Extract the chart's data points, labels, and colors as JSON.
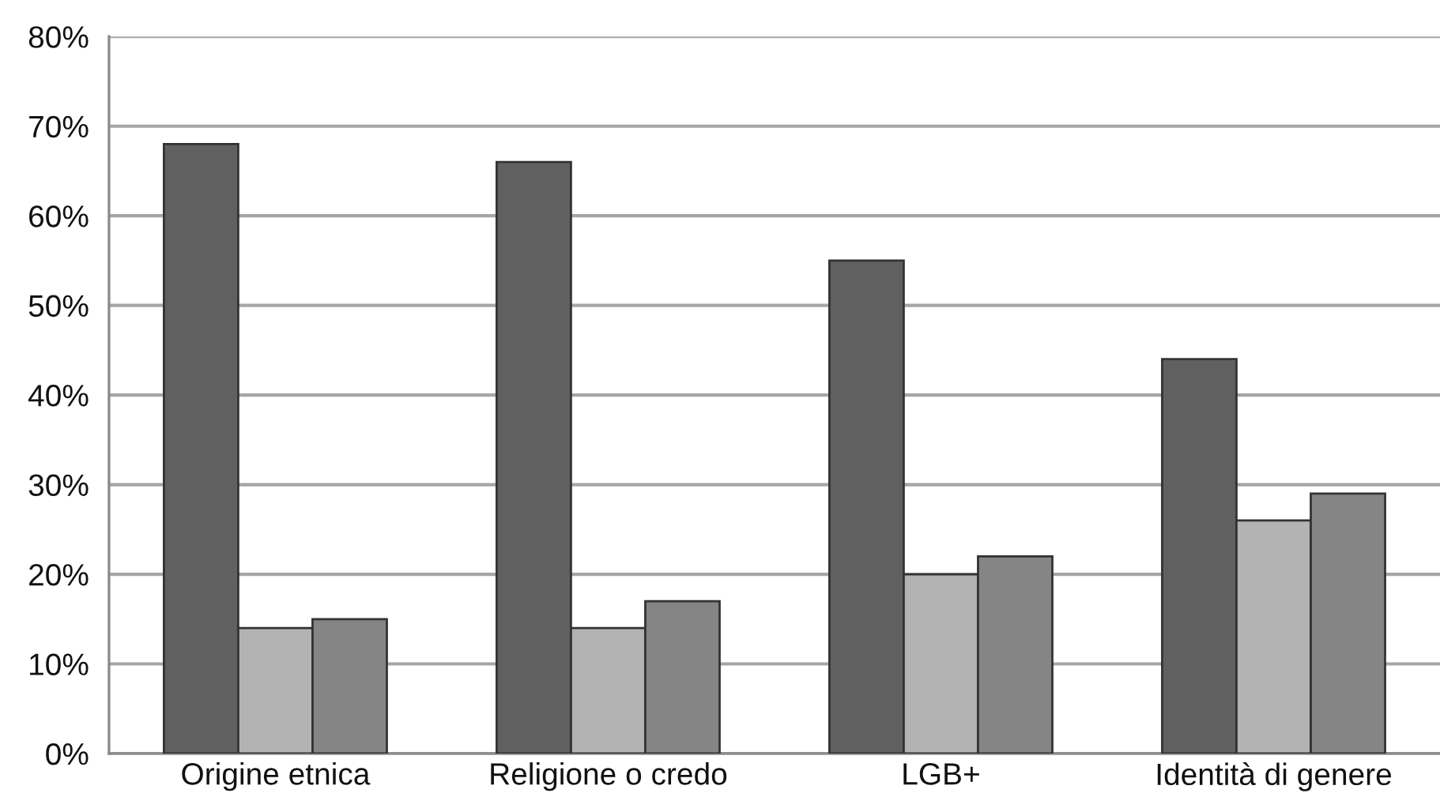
{
  "chart_data": {
    "type": "bar",
    "categories": [
      "Origine etnica",
      "Religione o credo",
      "LGB+",
      "Identità di genere"
    ],
    "series": [
      {
        "color": "#606060",
        "values": [
          68,
          66,
          55,
          44
        ]
      },
      {
        "color": "#b3b3b3",
        "values": [
          14,
          14,
          20,
          26
        ]
      },
      {
        "color": "#858585",
        "values": [
          15,
          17,
          22,
          29
        ]
      }
    ],
    "ylim": [
      0,
      80
    ],
    "yticks": [
      {
        "value": 0,
        "label": "0%"
      },
      {
        "value": 10,
        "label": "10%"
      },
      {
        "value": 20,
        "label": "20%"
      },
      {
        "value": 30,
        "label": "30%"
      },
      {
        "value": 40,
        "label": "40%"
      },
      {
        "value": 50,
        "label": "50%"
      },
      {
        "value": 60,
        "label": "60%"
      },
      {
        "value": 70,
        "label": "70%"
      },
      {
        "value": 80,
        "label": "80%"
      }
    ],
    "grid": "y"
  }
}
